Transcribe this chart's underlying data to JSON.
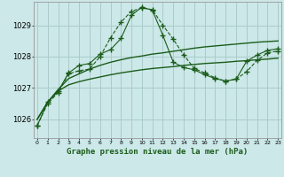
{
  "background_color": "#cce8e8",
  "grid_color": "#aacccc",
  "line_color": "#1a5c1a",
  "title": "Graphe pression niveau de la mer (hPa)",
  "ylabel_ticks": [
    1026,
    1027,
    1028,
    1029
  ],
  "xlim": [
    -0.3,
    23.3
  ],
  "ylim": [
    1025.4,
    1029.75
  ],
  "line1_smooth": {
    "x": [
      0,
      1,
      2,
      3,
      4,
      5,
      6,
      7,
      8,
      9,
      10,
      11,
      12,
      13,
      14,
      15,
      16,
      17,
      18,
      19,
      20,
      21,
      22,
      23
    ],
    "y": [
      1026.0,
      1026.55,
      1026.9,
      1027.1,
      1027.2,
      1027.28,
      1027.35,
      1027.42,
      1027.48,
      1027.53,
      1027.58,
      1027.62,
      1027.65,
      1027.68,
      1027.72,
      1027.75,
      1027.78,
      1027.8,
      1027.82,
      1027.85,
      1027.87,
      1027.9,
      1027.92,
      1027.95
    ]
  },
  "line2_smooth": {
    "x": [
      0,
      1,
      2,
      3,
      4,
      5,
      6,
      7,
      8,
      9,
      10,
      11,
      12,
      13,
      14,
      15,
      16,
      17,
      18,
      19,
      20,
      21,
      22,
      23
    ],
    "y": [
      1026.0,
      1026.55,
      1026.95,
      1027.3,
      1027.45,
      1027.6,
      1027.72,
      1027.82,
      1027.9,
      1027.97,
      1028.02,
      1028.08,
      1028.12,
      1028.17,
      1028.22,
      1028.27,
      1028.31,
      1028.34,
      1028.37,
      1028.4,
      1028.43,
      1028.46,
      1028.48,
      1028.5
    ]
  },
  "line3_marker": {
    "x": [
      0,
      1,
      2,
      3,
      4,
      5,
      6,
      7,
      8,
      9,
      10,
      11,
      12,
      13,
      14,
      15,
      16,
      17,
      18,
      19,
      20,
      21,
      22,
      23
    ],
    "y": [
      1025.8,
      1026.5,
      1026.85,
      1027.45,
      1027.55,
      1027.6,
      1028.0,
      1028.6,
      1029.1,
      1029.45,
      1029.55,
      1029.5,
      1029.0,
      1028.55,
      1028.05,
      1027.62,
      1027.48,
      1027.32,
      1027.22,
      1027.28,
      1027.52,
      1027.88,
      1028.12,
      1028.18
    ]
  },
  "line4_marker": {
    "x": [
      0,
      1,
      2,
      3,
      4,
      5,
      6,
      7,
      8,
      9,
      10,
      11,
      12,
      13,
      14,
      15,
      16,
      17,
      18,
      19,
      20,
      21,
      22,
      23
    ],
    "y": [
      1025.8,
      1026.55,
      1026.9,
      1027.48,
      1027.72,
      1027.78,
      1028.08,
      1028.22,
      1028.58,
      1029.32,
      1029.58,
      1029.48,
      1028.68,
      1027.82,
      1027.65,
      1027.58,
      1027.42,
      1027.3,
      1027.22,
      1027.28,
      1027.85,
      1028.05,
      1028.2,
      1028.25
    ]
  }
}
